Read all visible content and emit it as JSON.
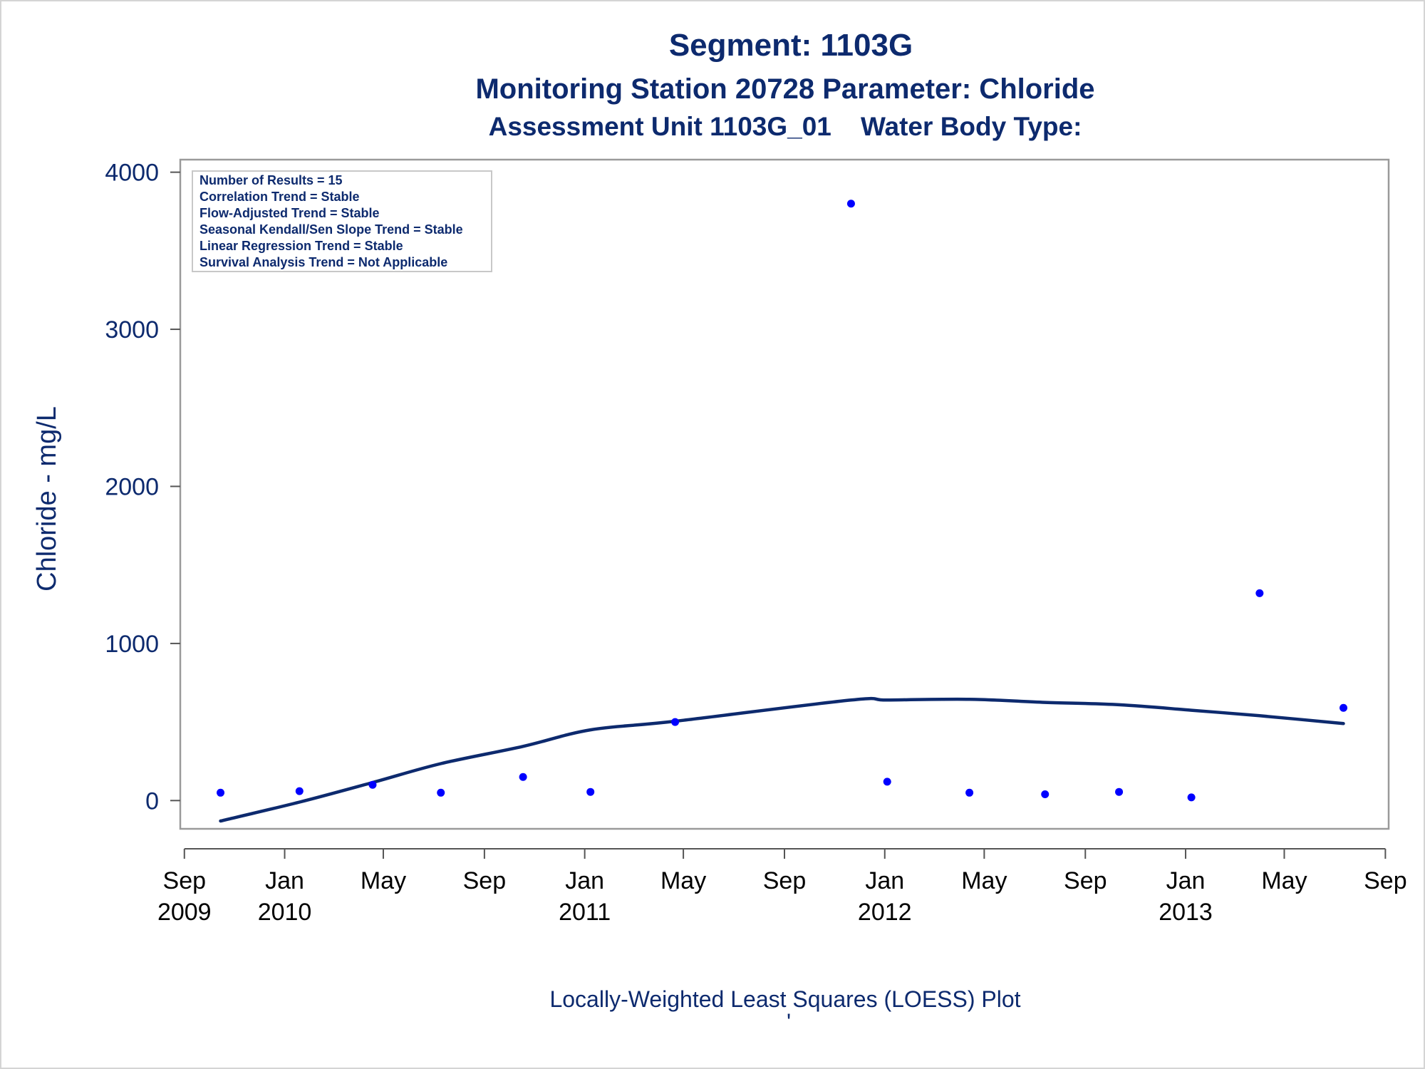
{
  "chart_data": {
    "type": "scatter",
    "title": "Segment: 1103G",
    "subtitle": "Monitoring Station 20728 Parameter: Chloride",
    "subtitle2": "Assessment Unit 1103G_01    Water Body Type:",
    "ylabel": "Chloride - mg/L",
    "footnote": "Locally-Weighted Least Squares (LOESS) Plot",
    "footnote_mark": "'",
    "ylim": [
      -180,
      4080
    ],
    "xlim": [
      "2009-08-27",
      "2013-09-05"
    ],
    "y_ticks": [
      0,
      1000,
      2000,
      3000,
      4000
    ],
    "x_ticks": [
      {
        "date": "2009-09-01",
        "line1": "Sep",
        "line2": "2009"
      },
      {
        "date": "2010-01-01",
        "line1": "Jan",
        "line2": "2010"
      },
      {
        "date": "2010-05-01",
        "line1": "May",
        "line2": ""
      },
      {
        "date": "2010-09-01",
        "line1": "Sep",
        "line2": ""
      },
      {
        "date": "2011-01-01",
        "line1": "Jan",
        "line2": "2011"
      },
      {
        "date": "2011-05-01",
        "line1": "May",
        "line2": ""
      },
      {
        "date": "2011-09-01",
        "line1": "Sep",
        "line2": ""
      },
      {
        "date": "2012-01-01",
        "line1": "Jan",
        "line2": "2012"
      },
      {
        "date": "2012-05-01",
        "line1": "May",
        "line2": ""
      },
      {
        "date": "2012-09-01",
        "line1": "Sep",
        "line2": ""
      },
      {
        "date": "2013-01-01",
        "line1": "Jan",
        "line2": "2013"
      },
      {
        "date": "2013-05-01",
        "line1": "May",
        "line2": ""
      },
      {
        "date": "2013-09-01",
        "line1": "Sep",
        "line2": ""
      }
    ],
    "stats_box": [
      "Number of Results = 15",
      "Correlation Trend = Stable",
      "Flow-Adjusted Trend = Stable",
      "Seasonal Kendall/Sen Slope Trend = Stable",
      "Linear Regression Trend = Stable",
      "Survival Analysis Trend = Not Applicable"
    ],
    "series": [
      {
        "kind": "points",
        "color": "#0000ff",
        "x": [
          "2009-10-15",
          "2010-01-19",
          "2010-04-18",
          "2010-07-10",
          "2010-10-18",
          "2011-01-08",
          "2011-04-21",
          "2011-11-21",
          "2012-01-04",
          "2012-04-13",
          "2012-07-14",
          "2012-10-12",
          "2013-01-08",
          "2013-04-01",
          "2013-07-12"
        ],
        "y": [
          50,
          60,
          100,
          50,
          150,
          55,
          500,
          3800,
          120,
          50,
          40,
          55,
          20,
          1320,
          590
        ]
      },
      {
        "kind": "loess",
        "color": "#0d2a6e",
        "x": [
          "2009-10-15",
          "2010-01-19",
          "2010-04-18",
          "2010-07-10",
          "2010-10-18",
          "2011-01-08",
          "2011-04-21",
          "2011-11-21",
          "2012-01-04",
          "2012-04-13",
          "2012-07-14",
          "2012-10-12",
          "2013-01-08",
          "2013-04-01",
          "2013-07-12"
        ],
        "y": [
          -130,
          -10,
          115,
          235,
          345,
          450,
          505,
          640,
          640,
          645,
          625,
          610,
          575,
          540,
          490
        ]
      }
    ]
  }
}
